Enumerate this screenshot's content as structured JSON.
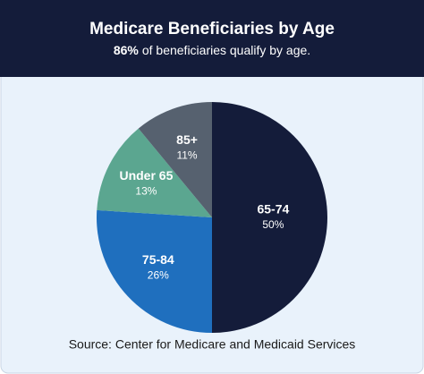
{
  "chart_data": {
    "type": "pie",
    "title": "Medicare Beneficiaries by Age",
    "subtitle": {
      "emphasis": "86%",
      "text": "of beneficiaries qualify by age."
    },
    "categories": [
      "65-74",
      "75-84",
      "Under 65",
      "85+"
    ],
    "values": [
      50,
      26,
      13,
      11
    ],
    "value_labels": [
      "50%",
      "26%",
      "13%",
      "11%"
    ],
    "colors": [
      "#141c3a",
      "#1f6fbe",
      "#5ba690",
      "#56616f"
    ],
    "source": "Source: Center for Medicare and Medicaid Services"
  }
}
